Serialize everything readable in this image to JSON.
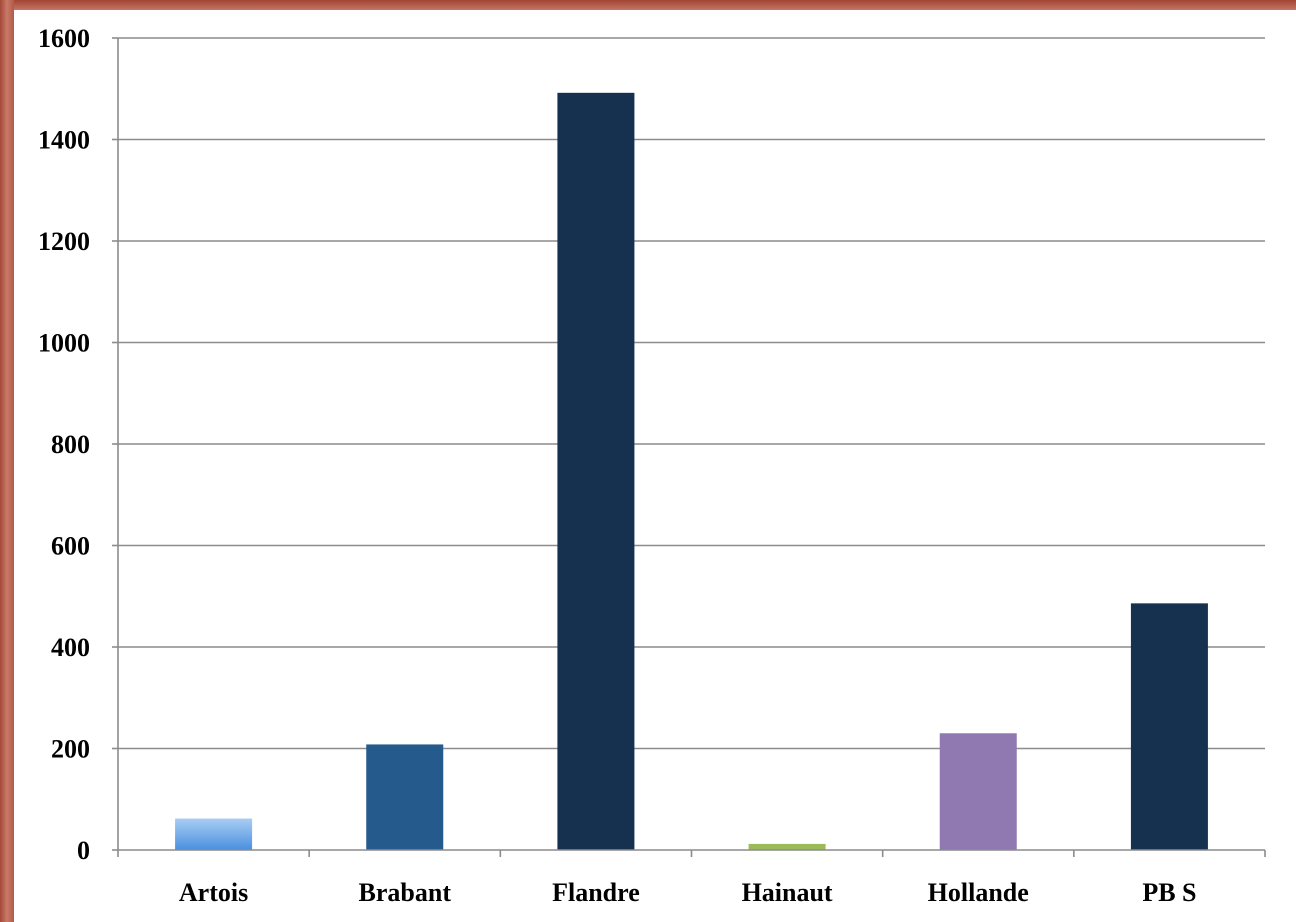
{
  "chart_data": {
    "type": "bar",
    "title": "",
    "xlabel": "",
    "ylabel": "",
    "categories": [
      "Artois",
      "Brabant",
      "Flandre",
      "Hainaut",
      "Hollande",
      "PB S"
    ],
    "values": [
      62,
      208,
      1492,
      12,
      230,
      486
    ],
    "bar_colors": [
      "#5b9be0",
      "#255a8c",
      "#16304f",
      "#9bbb59",
      "#9079b0",
      "#16304f"
    ],
    "ylim": [
      0,
      1600
    ],
    "yticks": [
      0,
      200,
      400,
      600,
      800,
      1000,
      1200,
      1400,
      1600
    ],
    "grid": true,
    "legend": "none"
  }
}
